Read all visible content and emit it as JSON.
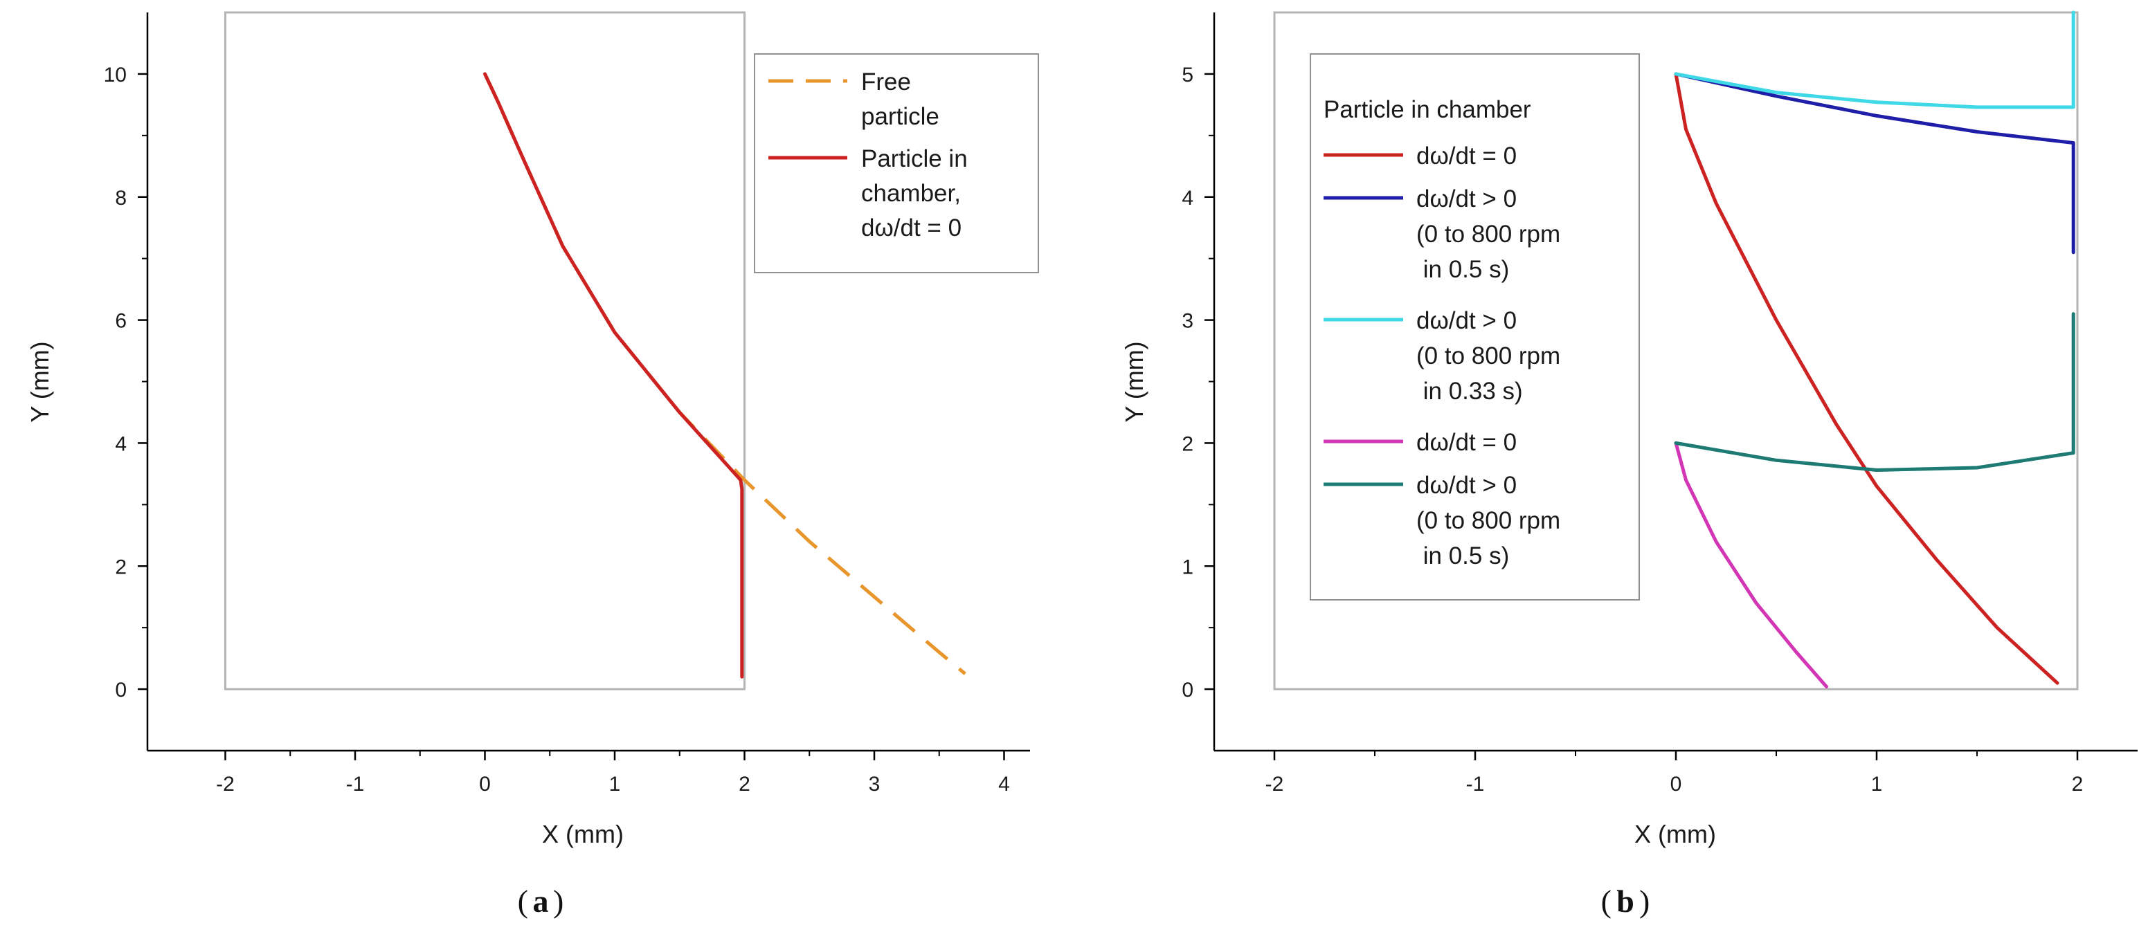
{
  "chart_data": [
    {
      "type": "line",
      "panel_label": "a",
      "title": "",
      "xlabel": "X (mm)",
      "ylabel": "Y (mm)",
      "xlim": [
        -2.6,
        4.2
      ],
      "ylim": [
        -1.0,
        11.0
      ],
      "x_ticks": [
        -2,
        -1,
        0,
        1,
        2,
        3,
        4
      ],
      "y_ticks": [
        0,
        2,
        4,
        6,
        8,
        10
      ],
      "chamber_box": {
        "x": [
          -2,
          2
        ],
        "y": [
          0,
          11
        ]
      },
      "legend_position": "top-right",
      "series": [
        {
          "name": "Free particle",
          "legend_lines": [
            "Free",
            "particle"
          ],
          "color": "#e8962c",
          "style": "dashed",
          "points": [
            [
              0,
              10
            ],
            [
              0.1,
              9.55
            ],
            [
              0.3,
              8.6
            ],
            [
              0.6,
              7.2
            ],
            [
              1.0,
              5.8
            ],
            [
              1.5,
              4.5
            ],
            [
              2.0,
              3.4
            ],
            [
              2.5,
              2.4
            ],
            [
              3.0,
              1.5
            ],
            [
              3.5,
              0.6
            ],
            [
              3.7,
              0.25
            ]
          ]
        },
        {
          "name": "Particle in chamber, dω/dt = 0",
          "legend_lines": [
            "Particle in",
            "chamber,",
            "dω/dt = 0"
          ],
          "color": "#cc2222",
          "style": "solid",
          "points": [
            [
              0,
              10
            ],
            [
              0.1,
              9.55
            ],
            [
              0.3,
              8.6
            ],
            [
              0.6,
              7.2
            ],
            [
              1.0,
              5.8
            ],
            [
              1.5,
              4.5
            ],
            [
              1.97,
              3.4
            ],
            [
              1.98,
              3.25
            ],
            [
              1.98,
              0.2
            ]
          ]
        }
      ]
    },
    {
      "type": "line",
      "panel_label": "b",
      "title": "",
      "xlabel": "X (mm)",
      "ylabel": "Y (mm)",
      "xlim": [
        -2.3,
        2.3
      ],
      "ylim": [
        -0.5,
        5.5
      ],
      "x_ticks": [
        -2,
        -1,
        0,
        1,
        2
      ],
      "y_ticks": [
        0,
        1,
        2,
        3,
        4,
        5
      ],
      "chamber_box": {
        "x": [
          -2,
          2
        ],
        "y": [
          0,
          5.5
        ]
      },
      "legend_position": "top-left",
      "legend_header": "Particle in chamber",
      "series": [
        {
          "name": "dω/dt = 0",
          "legend_lines": [
            "dω/dt = 0"
          ],
          "color": "#cc2222",
          "points": [
            [
              0,
              5
            ],
            [
              0.05,
              4.55
            ],
            [
              0.2,
              3.95
            ],
            [
              0.5,
              3.0
            ],
            [
              0.8,
              2.15
            ],
            [
              1.0,
              1.65
            ],
            [
              1.3,
              1.05
            ],
            [
              1.6,
              0.5
            ],
            [
              1.9,
              0.05
            ]
          ]
        },
        {
          "name": "dω/dt > 0 (0 to 800 rpm in 0.5 s)",
          "legend_lines": [
            "dω/dt > 0",
            "(0 to 800 rpm",
            " in 0.5 s)"
          ],
          "color": "#1e1ea8",
          "points": [
            [
              0,
              5
            ],
            [
              0.5,
              4.82
            ],
            [
              1.0,
              4.66
            ],
            [
              1.5,
              4.53
            ],
            [
              1.98,
              4.44
            ],
            [
              1.98,
              3.55
            ]
          ]
        },
        {
          "name": "dω/dt > 0 (0 to 800 rpm in 0.33 s)",
          "legend_lines": [
            "dω/dt > 0",
            "(0 to 800 rpm",
            " in 0.33 s)"
          ],
          "color": "#3ed8e6",
          "points": [
            [
              0,
              5
            ],
            [
              0.5,
              4.85
            ],
            [
              1.0,
              4.77
            ],
            [
              1.5,
              4.73
            ],
            [
              1.98,
              4.73
            ],
            [
              1.98,
              5.5
            ]
          ]
        },
        {
          "name": "dω/dt = 0",
          "legend_lines": [
            "dω/dt = 0"
          ],
          "color": "#d236b4",
          "points": [
            [
              0,
              2
            ],
            [
              0.05,
              1.7
            ],
            [
              0.2,
              1.2
            ],
            [
              0.4,
              0.7
            ],
            [
              0.6,
              0.3
            ],
            [
              0.75,
              0.02
            ]
          ]
        },
        {
          "name": "dω/dt > 0 (0 to 800 rpm in 0.5 s)",
          "legend_lines": [
            "dω/dt > 0",
            "(0 to 800 rpm",
            " in 0.5 s)"
          ],
          "color": "#1d7b74",
          "points": [
            [
              0,
              2
            ],
            [
              0.5,
              1.86
            ],
            [
              1.0,
              1.78
            ],
            [
              1.5,
              1.8
            ],
            [
              1.98,
              1.92
            ],
            [
              1.98,
              3.05
            ]
          ]
        }
      ]
    }
  ]
}
